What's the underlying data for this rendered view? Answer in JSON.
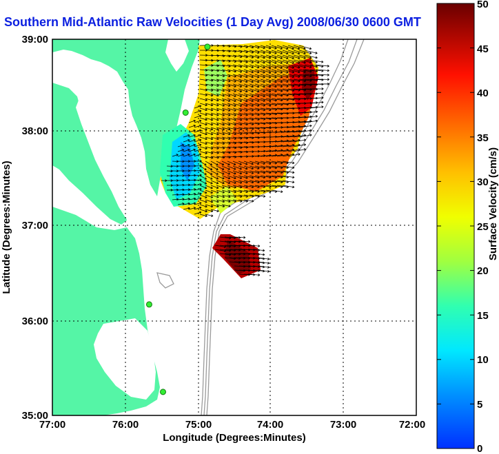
{
  "title": "Southern Mid-Atlantic Raw Velocities (1 Day Avg) 2008/06/30 0600 GMT",
  "map": {
    "xlabel": "Longitude (Degrees:Minutes)",
    "ylabel": "Latitude (Degrees:Minutes)",
    "x_ticks": [
      "77:00",
      "76:00",
      "75:00",
      "74:00",
      "73:00",
      "72:00"
    ],
    "y_ticks": [
      "39:00",
      "38:00",
      "37:00",
      "36:00",
      "35:00"
    ],
    "x_range_deg_west": [
      77,
      72
    ],
    "y_range_deg_north": [
      35,
      39
    ],
    "grid": "dotted"
  },
  "colorbar": {
    "label": "Surface Velocity (cm/s)",
    "ticks": [
      "0",
      "5",
      "10",
      "15",
      "20",
      "25",
      "30",
      "35",
      "40",
      "45",
      "50"
    ],
    "range": [
      0,
      50
    ],
    "colors": [
      "#0030ff",
      "#00c0ff",
      "#00ffd8",
      "#60ff60",
      "#e8ff00",
      "#ffc000",
      "#ff6000",
      "#ff0000",
      "#7a0000"
    ]
  },
  "colors": {
    "land": "#55f5a6",
    "title": "#0b1fe0",
    "bathymetry": "#9a9a9a",
    "station": "#33ee33"
  },
  "stations": [
    {
      "lon": -74.87,
      "lat": 38.92
    },
    {
      "lon": -75.17,
      "lat": 38.22
    },
    {
      "lon": -75.67,
      "lat": 36.18
    },
    {
      "lon": -75.48,
      "lat": 35.25
    }
  ]
}
